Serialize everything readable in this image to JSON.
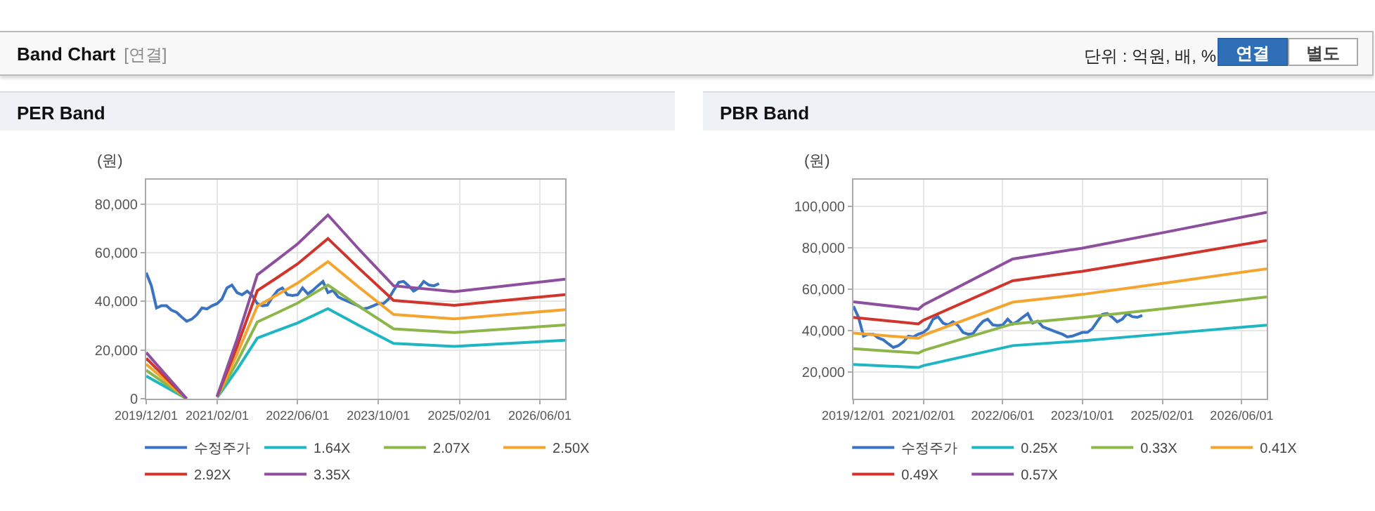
{
  "chart_data": [
    {
      "type": "line",
      "title": "PER Band",
      "ylabel": "(원)",
      "annotations": [
        "Band Chart",
        "[연결]",
        "단위 : 억원, 배, %",
        "연결",
        "별도"
      ],
      "x": [
        "2019-12",
        "2020-01",
        "2020-02",
        "2020-03",
        "2020-04",
        "2020-05",
        "2020-06",
        "2020-07",
        "2020-08",
        "2020-09",
        "2020-10",
        "2020-11",
        "2020-12",
        "2021-01",
        "2021-02",
        "2021-03",
        "2021-04",
        "2021-05",
        "2021-06",
        "2021-07",
        "2021-08",
        "2021-09",
        "2021-10",
        "2021-11",
        "2021-12",
        "2022-01",
        "2022-02",
        "2022-03",
        "2022-04",
        "2022-05",
        "2022-06",
        "2022-07",
        "2022-08",
        "2022-09",
        "2022-10",
        "2022-11",
        "2022-12",
        "2023-01",
        "2023-02",
        "2023-03",
        "2023-04",
        "2023-05",
        "2023-06",
        "2023-07",
        "2023-08",
        "2023-09",
        "2023-10",
        "2023-11",
        "2023-12",
        "2024-01",
        "2024-02",
        "2024-03",
        "2024-04",
        "2024-05",
        "2024-06",
        "2024-07",
        "2024-08",
        "2024-09",
        "2024-10"
      ],
      "series": [
        {
          "name": "수정주가",
          "color": "#3a73c2",
          "values": [
            51800,
            46400,
            37300,
            38200,
            38200,
            36400,
            35500,
            33600,
            31800,
            32700,
            34500,
            37300,
            36900,
            38200,
            39100,
            40900,
            45500,
            46700,
            43600,
            42700,
            44200,
            42400,
            39100,
            38200,
            38500,
            41800,
            44500,
            45500,
            42700,
            42400,
            42700,
            45500,
            43100,
            44500,
            46400,
            48200,
            43600,
            44500,
            41800,
            40900,
            40000,
            39100,
            38200,
            36900,
            37300,
            38200,
            39100,
            39100,
            40900,
            44500,
            47800,
            48200,
            46400,
            44200,
            45500,
            48200,
            46700,
            46400,
            47300
          ]
        },
        {
          "name": "1.64X",
          "color": "#1fb6c3",
          "x": [
            "2019-12",
            "2020-08",
            "2020-09",
            "2021-02",
            "2021-06",
            "2021-10",
            "2022-02",
            "2022-06",
            "2022-12",
            "2023-06",
            "2024-01",
            "2025-01",
            "2026-11"
          ],
          "values": [
            9300,
            0,
            null,
            500,
            12000,
            24900,
            28100,
            31100,
            37000,
            30300,
            22700,
            21500,
            24000
          ]
        },
        {
          "name": "2.07X",
          "color": "#8cb54a",
          "x": [
            "2019-12",
            "2020-08",
            "2020-09",
            "2021-02",
            "2021-06",
            "2021-10",
            "2022-02",
            "2022-06",
            "2022-12",
            "2023-06",
            "2024-01",
            "2025-01",
            "2026-11"
          ],
          "values": [
            11700,
            0,
            null,
            600,
            15100,
            31500,
            35400,
            39300,
            46700,
            38200,
            28700,
            27200,
            30300
          ]
        },
        {
          "name": "2.50X",
          "color": "#f4a530",
          "x": [
            "2019-12",
            "2020-08",
            "2020-09",
            "2021-02",
            "2021-06",
            "2021-10",
            "2022-02",
            "2022-06",
            "2022-12",
            "2023-06",
            "2024-01",
            "2025-01",
            "2026-11"
          ],
          "values": [
            14200,
            0,
            null,
            800,
            18300,
            38000,
            42800,
            47500,
            56300,
            46100,
            34600,
            32800,
            36600
          ]
        },
        {
          "name": "2.92X",
          "color": "#d0342c",
          "x": [
            "2019-12",
            "2020-08",
            "2020-09",
            "2021-02",
            "2021-06",
            "2021-10",
            "2022-02",
            "2022-06",
            "2022-12",
            "2023-06",
            "2024-01",
            "2025-01",
            "2026-11"
          ],
          "values": [
            16600,
            0,
            null,
            900,
            21400,
            44400,
            49900,
            55400,
            65800,
            53900,
            40400,
            38400,
            42800
          ]
        },
        {
          "name": "3.35X",
          "color": "#8e4f9e",
          "x": [
            "2019-12",
            "2020-08",
            "2020-09",
            "2021-02",
            "2021-06",
            "2021-10",
            "2022-02",
            "2022-06",
            "2022-12",
            "2023-06",
            "2024-01",
            "2025-01",
            "2026-11"
          ],
          "values": [
            19000,
            0,
            null,
            1000,
            24500,
            50900,
            57300,
            63600,
            75500,
            61800,
            46400,
            44000,
            49100
          ]
        }
      ],
      "xlim": [
        "2019-12-01",
        "2026-11-01"
      ],
      "xticks": [
        {
          "value": "2019-12-01",
          "label": "2019/12/01"
        },
        {
          "value": "2021-02-01",
          "label": "2021/02/01"
        },
        {
          "value": "2022-06-01",
          "label": "2022/06/01"
        },
        {
          "value": "2023-10-01",
          "label": "2023/10/01"
        },
        {
          "value": "2025-02-01",
          "label": "2025/02/01"
        },
        {
          "value": "2026-06-01",
          "label": "2026/06/01"
        }
      ],
      "ylim": [
        0,
        90000
      ],
      "yticks": [
        0,
        {
          "value": 20000,
          "label": "20,000"
        },
        {
          "value": 40000,
          "label": "40,000"
        },
        {
          "value": 60000,
          "label": "60,000"
        },
        {
          "value": 80000,
          "label": "80,000"
        }
      ],
      "grid": true,
      "legend": "bottom",
      "marker": "none",
      "line_style": "solid"
    },
    {
      "type": "line",
      "title": "PBR Band",
      "ylabel": "(원)",
      "x": [
        "2019-12",
        "2020-01",
        "2020-02",
        "2020-03",
        "2020-04",
        "2020-05",
        "2020-06",
        "2020-07",
        "2020-08",
        "2020-09",
        "2020-10",
        "2020-11",
        "2020-12",
        "2021-01",
        "2021-02",
        "2021-03",
        "2021-04",
        "2021-05",
        "2021-06",
        "2021-07",
        "2021-08",
        "2021-09",
        "2021-10",
        "2021-11",
        "2021-12",
        "2022-01",
        "2022-02",
        "2022-03",
        "2022-04",
        "2022-05",
        "2022-06",
        "2022-07",
        "2022-08",
        "2022-09",
        "2022-10",
        "2022-11",
        "2022-12",
        "2023-01",
        "2023-02",
        "2023-03",
        "2023-04",
        "2023-05",
        "2023-06",
        "2023-07",
        "2023-08",
        "2023-09",
        "2023-10",
        "2023-11",
        "2023-12",
        "2024-01",
        "2024-02",
        "2024-03",
        "2024-04",
        "2024-05",
        "2024-06",
        "2024-07",
        "2024-08",
        "2024-09",
        "2024-10"
      ],
      "series": [
        {
          "name": "수정주가",
          "color": "#3a73c2",
          "values": [
            51800,
            46400,
            37300,
            38200,
            38200,
            36400,
            35500,
            33600,
            31800,
            32700,
            34500,
            37300,
            36900,
            38200,
            39100,
            40900,
            45500,
            46700,
            43600,
            42700,
            44200,
            42400,
            39100,
            38200,
            38500,
            41800,
            44500,
            45500,
            42700,
            42400,
            42700,
            45500,
            43100,
            44500,
            46400,
            48200,
            43600,
            44500,
            41800,
            40900,
            40000,
            39100,
            38200,
            36900,
            37300,
            38200,
            39100,
            39100,
            40900,
            44500,
            47800,
            48200,
            46400,
            44200,
            45500,
            48200,
            46700,
            46400,
            47300
          ]
        },
        {
          "name": "0.25X",
          "color": "#1fb6c3",
          "x": [
            "2019-12",
            "2021-01",
            "2021-02",
            "2022-08",
            "2023-10",
            "2025-02",
            "2026-11"
          ],
          "values": [
            23600,
            22100,
            23000,
            32700,
            35000,
            38300,
            42600
          ]
        },
        {
          "name": "0.33X",
          "color": "#8cb54a",
          "x": [
            "2019-12",
            "2021-01",
            "2021-02",
            "2022-08",
            "2023-10",
            "2025-02",
            "2026-11"
          ],
          "values": [
            31200,
            29100,
            30300,
            43200,
            46300,
            50500,
            56300
          ]
        },
        {
          "name": "0.41X",
          "color": "#f4a530",
          "x": [
            "2019-12",
            "2021-01",
            "2021-02",
            "2022-08",
            "2023-10",
            "2025-02",
            "2026-11"
          ],
          "values": [
            38800,
            36200,
            37700,
            53700,
            57500,
            62800,
            69900
          ]
        },
        {
          "name": "0.49X",
          "color": "#d0342c",
          "x": [
            "2019-12",
            "2021-01",
            "2021-02",
            "2022-08",
            "2023-10",
            "2025-02",
            "2026-11"
          ],
          "values": [
            46300,
            43200,
            45000,
            64100,
            68700,
            75000,
            83600
          ]
        },
        {
          "name": "0.57X",
          "color": "#8e4f9e",
          "x": [
            "2019-12",
            "2021-01",
            "2021-02",
            "2022-08",
            "2023-10",
            "2025-02",
            "2026-11"
          ],
          "values": [
            53900,
            50300,
            52400,
            74600,
            79900,
            87300,
            97200
          ]
        }
      ],
      "xlim": [
        "2019-12-01",
        "2026-11-01"
      ],
      "xticks": [
        {
          "value": "2019-12-01",
          "label": "2019/12/01"
        },
        {
          "value": "2021-02-01",
          "label": "2021/02/01"
        },
        {
          "value": "2022-06-01",
          "label": "2022/06/01"
        },
        {
          "value": "2023-10-01",
          "label": "2023/10/01"
        },
        {
          "value": "2025-02-01",
          "label": "2025/02/01"
        },
        {
          "value": "2026-06-01",
          "label": "2026/06/01"
        }
      ],
      "ylim": [
        7000,
        113000
      ],
      "yticks": [
        {
          "value": 20000,
          "label": "20,000"
        },
        {
          "value": 40000,
          "label": "40,000"
        },
        {
          "value": 60000,
          "label": "60,000"
        },
        {
          "value": 80000,
          "label": "80,000"
        },
        {
          "value": 100000,
          "label": "100,000"
        }
      ],
      "grid": true,
      "legend": "bottom",
      "marker": "none",
      "line_style": "solid"
    }
  ]
}
